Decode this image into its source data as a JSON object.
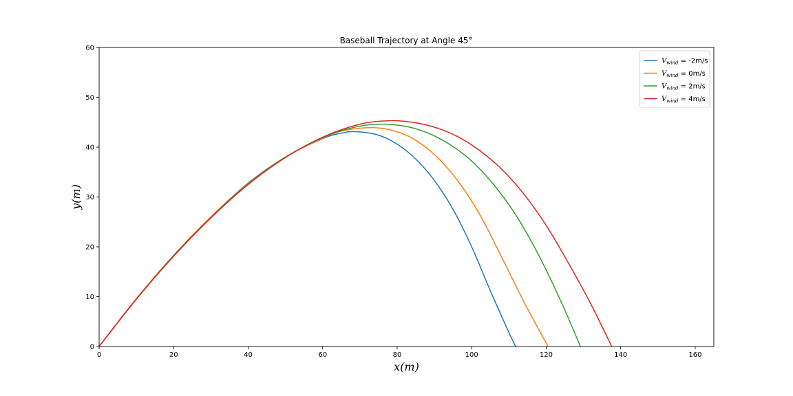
{
  "chart_data": {
    "type": "line",
    "title": "Baseball Trajectory at Angle 45°",
    "xlabel": "x(m)",
    "ylabel": "y(m)",
    "xlim": [
      0,
      165
    ],
    "ylim": [
      0,
      60
    ],
    "xticks": [
      0,
      20,
      40,
      60,
      80,
      100,
      120,
      140,
      160
    ],
    "yticks": [
      0,
      10,
      20,
      30,
      40,
      50,
      60
    ],
    "grid": false,
    "legend_position": "top-right",
    "series": [
      {
        "name": "V_wind = -2m/s",
        "legend_label": {
          "symbol": "V",
          "subscript": "wind",
          "value": " = -2m/s"
        },
        "color": "#1f77b4",
        "x": [
          0,
          10,
          20,
          30,
          40,
          50,
          60,
          65,
          69,
          75,
          80,
          85,
          90,
          95,
          100,
          105,
          110,
          111.8
        ],
        "y": [
          0,
          9.6,
          18.3,
          26.0,
          32.8,
          38.0,
          41.7,
          42.8,
          43.1,
          42.4,
          40.6,
          37.6,
          33.3,
          27.5,
          20.0,
          11.2,
          2.8,
          0
        ]
      },
      {
        "name": "V_wind = 0m/s",
        "legend_label": {
          "symbol": "V",
          "subscript": "wind",
          "value": " = 0m/s"
        },
        "color": "#ff7f0e",
        "x": [
          0,
          10,
          20,
          30,
          40,
          50,
          60,
          65,
          72,
          78,
          84,
          90,
          96,
          102,
          108,
          114,
          120.5
        ],
        "y": [
          0,
          9.6,
          18.3,
          26.0,
          32.7,
          38.0,
          41.8,
          43.2,
          43.9,
          43.5,
          41.8,
          38.5,
          33.5,
          26.7,
          18.0,
          9.0,
          0
        ]
      },
      {
        "name": "V_wind = 2m/s",
        "legend_label": {
          "symbol": "V",
          "subscript": "wind",
          "value": " = 2m/s"
        },
        "color": "#2ca02c",
        "x": [
          0,
          10,
          20,
          30,
          40,
          50,
          60,
          68,
          75,
          82,
          88,
          94,
          100,
          106,
          112,
          118,
          124,
          129.2
        ],
        "y": [
          0,
          9.5,
          18.2,
          25.9,
          32.6,
          38.0,
          41.9,
          43.9,
          44.6,
          44.2,
          42.9,
          40.6,
          37.2,
          32.4,
          26.2,
          18.3,
          9.0,
          0
        ]
      },
      {
        "name": "V_wind = 4m/s",
        "legend_label": {
          "symbol": "V",
          "subscript": "wind",
          "value": " = 4m/s"
        },
        "color": "#d62728",
        "x": [
          0,
          10,
          20,
          30,
          40,
          50,
          60,
          70,
          78,
          84,
          90,
          96,
          102,
          108,
          114,
          120,
          126,
          132,
          137.6
        ],
        "y": [
          0,
          9.5,
          18.1,
          25.8,
          32.5,
          37.9,
          42.0,
          44.6,
          45.3,
          45.0,
          44.0,
          42.2,
          39.4,
          35.6,
          30.6,
          24.3,
          16.7,
          8.5,
          0
        ]
      }
    ]
  }
}
